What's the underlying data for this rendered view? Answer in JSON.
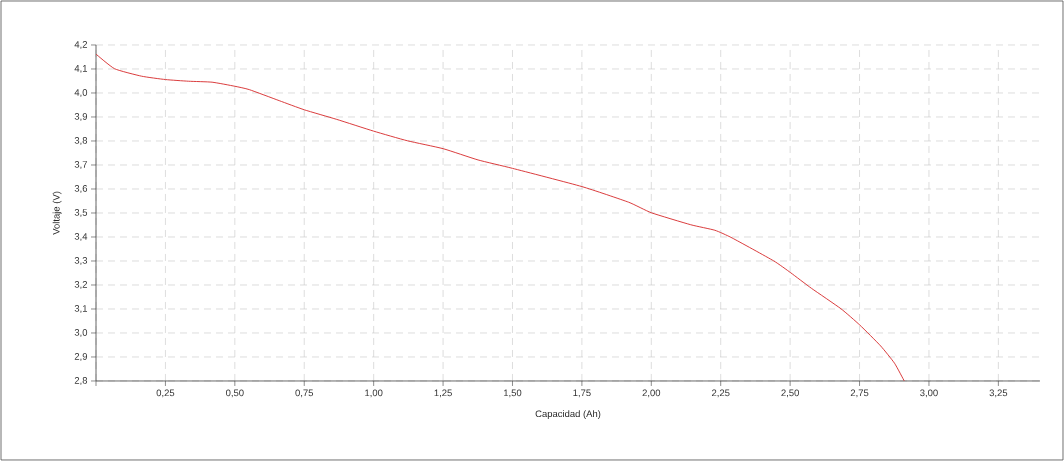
{
  "chart_data": {
    "type": "line",
    "xlabel": "Capacidad (Ah)",
    "ylabel": "Voltaje (V)",
    "x": [
      0,
      0.067,
      0.164,
      0.25,
      0.333,
      0.418,
      0.5,
      0.552,
      0.66,
      0.75,
      0.867,
      1.0,
      1.121,
      1.25,
      1.376,
      1.5,
      1.75,
      1.918,
      2.0,
      2.142,
      2.229,
      2.291,
      2.44,
      2.502,
      2.577,
      2.683,
      2.751,
      2.826,
      2.876,
      2.911
    ],
    "series": [
      {
        "color": "#d62728",
        "values": [
          4.162,
          4.101,
          4.07,
          4.056,
          4.049,
          4.045,
          4.028,
          4.014,
          3.968,
          3.93,
          3.89,
          3.841,
          3.801,
          3.768,
          3.721,
          3.686,
          3.61,
          3.545,
          3.501,
          3.451,
          3.428,
          3.396,
          3.301,
          3.251,
          3.186,
          3.101,
          3.033,
          2.946,
          2.874,
          2.8
        ]
      }
    ],
    "xlim": [
      0,
      3.4
    ],
    "ylim": [
      2.8,
      4.2
    ],
    "xticks": [
      {
        "value": 0,
        "label": null
      },
      {
        "value": 0.25,
        "label": "0,25"
      },
      {
        "value": 0.5,
        "label": "0,50"
      },
      {
        "value": 0.75,
        "label": "0,75"
      },
      {
        "value": 1.0,
        "label": "1,00"
      },
      {
        "value": 1.25,
        "label": "1,25"
      },
      {
        "value": 1.5,
        "label": "1,50"
      },
      {
        "value": 1.75,
        "label": "1,75"
      },
      {
        "value": 2.0,
        "label": "2,00"
      },
      {
        "value": 2.25,
        "label": "2,25"
      },
      {
        "value": 2.5,
        "label": "2,50"
      },
      {
        "value": 2.75,
        "label": "2,75"
      },
      {
        "value": 3.0,
        "label": "3,00"
      },
      {
        "value": 3.25,
        "label": "3,25"
      }
    ],
    "yticks": [
      {
        "value": 2.8,
        "label": "2,8"
      },
      {
        "value": 2.9,
        "label": "2,9"
      },
      {
        "value": 3.0,
        "label": "3,0"
      },
      {
        "value": 3.1,
        "label": "3,1"
      },
      {
        "value": 3.2,
        "label": "3,2"
      },
      {
        "value": 3.3,
        "label": "3,3"
      },
      {
        "value": 3.4,
        "label": "3,4"
      },
      {
        "value": 3.5,
        "label": "3,5"
      },
      {
        "value": 3.6,
        "label": "3,6"
      },
      {
        "value": 3.7,
        "label": "3,7"
      },
      {
        "value": 3.8,
        "label": "3,8"
      },
      {
        "value": 3.9,
        "label": "3,9"
      },
      {
        "value": 4.0,
        "label": "4,0"
      },
      {
        "value": 4.1,
        "label": "4,1"
      },
      {
        "value": 4.2,
        "label": "4,2"
      }
    ],
    "grid": true,
    "marker": "none",
    "line_style": "solid"
  }
}
